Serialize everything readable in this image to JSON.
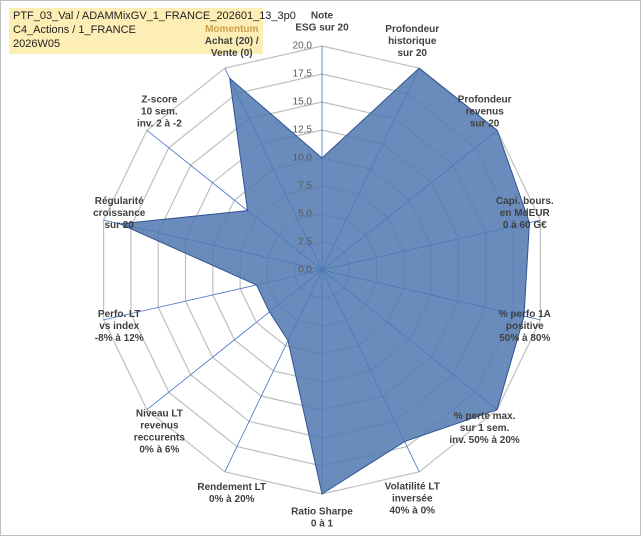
{
  "header": {
    "lines": [
      "PTF_03_Val / ADAMMixGV_1_FRANCE_202601_13_3p0",
      "C4_Actions / 1_FRANCE",
      "2026W05"
    ]
  },
  "chart_data": {
    "type": "radar",
    "categories": [
      [
        "Note",
        "ESG sur 20"
      ],
      [
        "Profondeur",
        "historique",
        "sur 20"
      ],
      [
        "Profondeur",
        "revenus",
        "sur 20"
      ],
      [
        "Capi. bours.",
        "en MdEUR",
        "0 à 60 G€"
      ],
      [
        "% perfo 1A",
        "positive",
        "50% à 80%"
      ],
      [
        "% perte max.",
        "sur 1 sem.",
        "inv. 50% à 20%"
      ],
      [
        "Volatilité LT",
        "inversée",
        "40% à 0%"
      ],
      [
        "Ratio Sharpe",
        "0 à 1"
      ],
      [
        "Rendement LT",
        "0% à 20%"
      ],
      [
        "Niveau LT",
        "revenus",
        "reccurents",
        "0% à 6%"
      ],
      [
        "Perfo. LT",
        "vs index",
        "-8% à 12%"
      ],
      [
        "Régularité",
        "croissance",
        "sur 20"
      ],
      [
        "Z-score",
        "10 sem.",
        "inv. 2 à -2"
      ],
      [
        "Momentum",
        "Achat (20) /",
        "Vente (0)"
      ]
    ],
    "series": [
      {
        "color": "#4f78b0",
        "values": [
          10,
          20,
          20,
          19,
          18.5,
          20,
          17,
          20,
          7,
          6,
          6,
          18.5,
          8.5,
          19
        ]
      }
    ],
    "rlim": [
      0,
      20
    ],
    "rticks": [
      {
        "value": 0,
        "label": "0,0"
      },
      {
        "value": 2.5,
        "label": "2,5"
      },
      {
        "value": 5,
        "label": "5,0"
      },
      {
        "value": 7.5,
        "label": "7,5"
      },
      {
        "value": 10,
        "label": "10,0"
      },
      {
        "value": 12.5,
        "label": "12,5"
      },
      {
        "value": 15,
        "label": "15,0"
      },
      {
        "value": 17.5,
        "label": "17,5"
      },
      {
        "value": 20,
        "label": "20,0"
      }
    ],
    "grid": true
  }
}
